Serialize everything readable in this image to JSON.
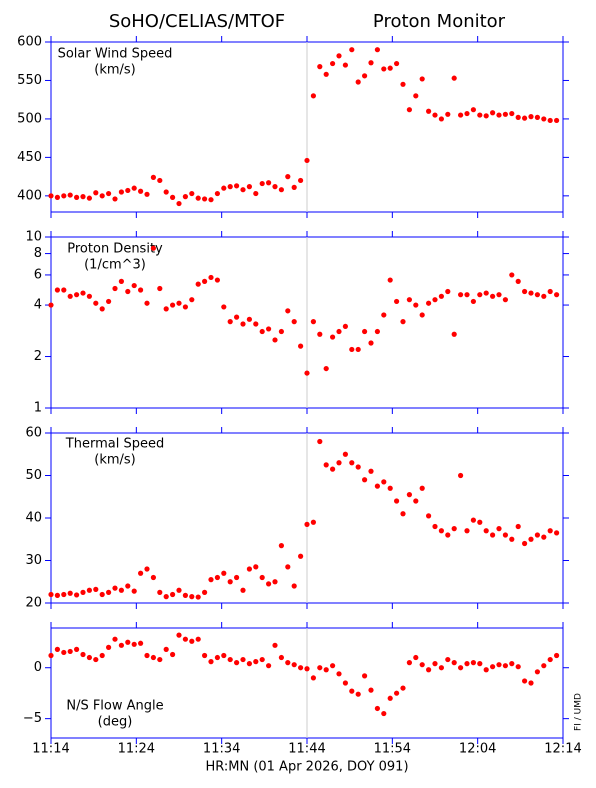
{
  "header": {
    "title_left": "SoHO/CELIAS/MTOF",
    "title_right": "Proton Monitor",
    "xlabel": "HR:MN (01 Apr 2026, DOY 091)",
    "credit": "FI / UMD"
  },
  "chart_data": [
    {
      "type": "scatter",
      "label": [
        "Solar Wind Speed",
        "(km/s)"
      ],
      "color": "#ff0000",
      "axis_color": "#0000ff",
      "vline_x": 30,
      "xlim": [
        0,
        60
      ],
      "xticks": [
        0,
        10,
        20,
        30,
        40,
        50,
        60
      ],
      "ylim": [
        379,
        600
      ],
      "yticks": [
        400,
        450,
        500,
        550,
        600
      ],
      "x": [
        0,
        0.75,
        1.5,
        2.25,
        3,
        3.75,
        4.5,
        5.25,
        6,
        6.75,
        7.5,
        8.25,
        9,
        9.75,
        10.5,
        11.25,
        12,
        12.75,
        13.5,
        14.25,
        15,
        15.75,
        16.5,
        17.25,
        18,
        18.75,
        19.5,
        20.25,
        21,
        21.75,
        22.5,
        23.25,
        24,
        24.75,
        25.5,
        26.25,
        27,
        27.75,
        28.5,
        29.25,
        30,
        30.75,
        31.5,
        32.25,
        33,
        33.75,
        34.5,
        35.25,
        36,
        36.75,
        37.5,
        38.25,
        39,
        39.75,
        40.5,
        41.25,
        42,
        42.75,
        43.5,
        44.25,
        45,
        45.75,
        46.5,
        47.25,
        48,
        48.75,
        49.5,
        50.25,
        51,
        51.75,
        52.5,
        53.25,
        54,
        54.75,
        55.5,
        56.25,
        57,
        57.75,
        58.5,
        59.25
      ],
      "values": [
        400,
        398,
        400,
        401,
        398,
        399,
        397,
        404,
        400,
        403,
        396,
        405,
        407,
        410,
        406,
        402,
        424,
        420,
        405,
        398,
        390,
        399,
        403,
        397,
        396,
        395,
        403,
        410,
        412,
        413,
        408,
        412,
        403,
        416,
        417,
        412,
        408,
        425,
        411,
        420,
        446,
        530,
        568,
        558,
        572,
        582,
        570,
        590,
        548,
        556,
        573,
        590,
        565,
        566,
        572,
        545,
        512,
        530,
        552,
        510,
        505,
        500,
        506,
        553,
        505,
        507,
        512,
        505,
        504,
        508,
        505,
        506,
        507,
        502,
        501,
        503,
        502,
        500,
        498,
        498
      ]
    },
    {
      "type": "scatter",
      "label": [
        "Proton Density",
        "(1/cm^3)"
      ],
      "color": "#ff0000",
      "axis_color": "#0000ff",
      "vline_x": 30,
      "log": true,
      "xlim": [
        0,
        60
      ],
      "xticks": [
        0,
        10,
        20,
        30,
        40,
        50,
        60
      ],
      "ylim": [
        1,
        10
      ],
      "yticks": [
        1,
        2,
        4,
        6,
        8,
        10
      ],
      "x": [
        0,
        0.75,
        1.5,
        2.25,
        3,
        3.75,
        4.5,
        5.25,
        6,
        6.75,
        7.5,
        8.25,
        9,
        9.75,
        10.5,
        11.25,
        12,
        12.75,
        13.5,
        14.25,
        15,
        15.75,
        16.5,
        17.25,
        18,
        18.75,
        19.5,
        20.25,
        21,
        21.75,
        22.5,
        23.25,
        24,
        24.75,
        25.5,
        26.25,
        27,
        27.75,
        28.5,
        29.25,
        30,
        30.75,
        31.5,
        32.25,
        33,
        33.75,
        34.5,
        35.25,
        36,
        36.75,
        37.5,
        38.25,
        39,
        39.75,
        40.5,
        41.25,
        42,
        42.75,
        43.5,
        44.25,
        45,
        45.75,
        46.5,
        47.25,
        48,
        48.75,
        49.5,
        50.25,
        51,
        51.75,
        52.5,
        53.25,
        54,
        54.75,
        55.5,
        56.25,
        57,
        57.75,
        58.5,
        59.25
      ],
      "values": [
        4.0,
        4.9,
        4.9,
        4.5,
        4.6,
        4.7,
        4.5,
        4.1,
        3.8,
        4.2,
        5.0,
        5.5,
        4.8,
        5.2,
        4.9,
        4.1,
        8.6,
        5.0,
        3.8,
        4.0,
        4.1,
        3.9,
        4.3,
        5.3,
        5.5,
        5.8,
        5.6,
        3.9,
        3.2,
        3.4,
        3.1,
        3.3,
        3.1,
        2.8,
        2.9,
        2.5,
        2.8,
        3.7,
        3.2,
        2.3,
        1.6,
        3.2,
        2.7,
        1.7,
        2.6,
        2.8,
        3.0,
        2.2,
        2.2,
        2.8,
        2.4,
        2.8,
        3.5,
        5.6,
        4.2,
        3.2,
        4.3,
        4.0,
        3.5,
        4.1,
        4.3,
        4.5,
        4.8,
        2.7,
        4.6,
        4.6,
        4.2,
        4.6,
        4.7,
        4.5,
        4.6,
        4.3,
        6.0,
        5.5,
        4.8,
        4.7,
        4.6,
        4.5,
        4.8,
        4.6
      ]
    },
    {
      "type": "scatter",
      "label": [
        "Thermal Speed",
        "(km/s)"
      ],
      "color": "#ff0000",
      "axis_color": "#0000ff",
      "vline_x": 30,
      "xlim": [
        0,
        60
      ],
      "xticks": [
        0,
        10,
        20,
        30,
        40,
        50,
        60
      ],
      "ylim": [
        20,
        60
      ],
      "yticks": [
        20,
        30,
        40,
        50,
        60
      ],
      "x": [
        0,
        0.75,
        1.5,
        2.25,
        3,
        3.75,
        4.5,
        5.25,
        6,
        6.75,
        7.5,
        8.25,
        9,
        9.75,
        10.5,
        11.25,
        12,
        12.75,
        13.5,
        14.25,
        15,
        15.75,
        16.5,
        17.25,
        18,
        18.75,
        19.5,
        20.25,
        21,
        21.75,
        22.5,
        23.25,
        24,
        24.75,
        25.5,
        26.25,
        27,
        27.75,
        28.5,
        29.25,
        30,
        30.75,
        31.5,
        32.25,
        33,
        33.75,
        34.5,
        35.25,
        36,
        36.75,
        37.5,
        38.25,
        39,
        39.75,
        40.5,
        41.25,
        42,
        42.75,
        43.5,
        44.25,
        45,
        45.75,
        46.5,
        47.25,
        48,
        48.75,
        49.5,
        50.25,
        51,
        51.75,
        52.5,
        53.25,
        54,
        54.75,
        55.5,
        56.25,
        57,
        57.75,
        58.5,
        59.25
      ],
      "values": [
        22,
        21.8,
        22,
        22.3,
        21.9,
        22.5,
        23,
        23.2,
        22,
        22.5,
        23.5,
        23,
        24,
        22.8,
        27,
        28,
        26,
        22.5,
        21.5,
        22,
        23,
        21.8,
        21.5,
        21.4,
        22.5,
        25.5,
        26,
        27,
        25,
        26,
        23,
        28,
        28.5,
        26,
        24.5,
        25,
        33.5,
        28.5,
        24,
        31,
        38.5,
        39,
        58,
        52.5,
        51.5,
        53,
        55,
        53,
        52,
        49,
        51,
        47.5,
        48.5,
        47,
        44,
        41,
        45.5,
        44,
        47,
        40.5,
        38,
        37,
        36,
        37.5,
        50,
        37,
        39.5,
        39,
        37,
        36,
        37.5,
        36,
        35,
        38,
        34,
        35,
        36,
        35.5,
        37,
        36.5
      ]
    },
    {
      "type": "scatter",
      "label": [
        "N/S Flow Angle",
        "(deg)"
      ],
      "color": "#ff0000",
      "axis_color": "#0000ff",
      "vline_x": 30,
      "xlim": [
        0,
        60
      ],
      "xticks": [
        {
          "value": 0,
          "label": "11:14"
        },
        {
          "value": 10,
          "label": "11:24"
        },
        {
          "value": 20,
          "label": "11:34"
        },
        {
          "value": 30,
          "label": "11:44"
        },
        {
          "value": 40,
          "label": "11:54"
        },
        {
          "value": 50,
          "label": "12:04"
        },
        {
          "value": 60,
          "label": "12:14"
        }
      ],
      "ylim": [
        -6.9,
        3.9
      ],
      "yticks": [
        {
          "value": -5,
          "label": "−5"
        },
        0
      ],
      "x": [
        0,
        0.75,
        1.5,
        2.25,
        3,
        3.75,
        4.5,
        5.25,
        6,
        6.75,
        7.5,
        8.25,
        9,
        9.75,
        10.5,
        11.25,
        12,
        12.75,
        13.5,
        14.25,
        15,
        15.75,
        16.5,
        17.25,
        18,
        18.75,
        19.5,
        20.25,
        21,
        21.75,
        22.5,
        23.25,
        24,
        24.75,
        25.5,
        26.25,
        27,
        27.75,
        28.5,
        29.25,
        30,
        30.75,
        31.5,
        32.25,
        33,
        33.75,
        34.5,
        35.25,
        36,
        36.75,
        37.5,
        38.25,
        39,
        39.75,
        40.5,
        41.25,
        42,
        42.75,
        43.5,
        44.25,
        45,
        45.75,
        46.5,
        47.25,
        48,
        48.75,
        49.5,
        50.25,
        51,
        51.75,
        52.5,
        53.25,
        54,
        54.75,
        55.5,
        56.25,
        57,
        57.75,
        58.5,
        59.25
      ],
      "values": [
        1.2,
        1.8,
        1.5,
        1.6,
        1.8,
        1.3,
        1.0,
        0.8,
        1.2,
        2.0,
        2.8,
        2.2,
        2.5,
        2.3,
        2.4,
        1.2,
        1.0,
        0.8,
        1.8,
        1.3,
        3.2,
        2.8,
        2.6,
        2.8,
        1.2,
        0.6,
        1.0,
        1.2,
        0.8,
        0.5,
        0.8,
        0.4,
        0.6,
        0.8,
        0.2,
        2.2,
        1.0,
        0.5,
        0.3,
        0.0,
        -0.1,
        -1.0,
        0.0,
        -0.2,
        0.2,
        -0.6,
        -1.5,
        -2.3,
        -2.6,
        -0.8,
        -2.2,
        -4.0,
        -4.5,
        -3.0,
        -2.5,
        -2.0,
        0.5,
        1.0,
        0.3,
        -0.2,
        0.4,
        0.0,
        0.8,
        0.5,
        0.0,
        0.4,
        0.5,
        0.4,
        -0.2,
        0.1,
        0.3,
        0.2,
        0.4,
        0.1,
        -1.3,
        -1.5,
        -0.4,
        0.2,
        0.8,
        1.2
      ]
    }
  ]
}
